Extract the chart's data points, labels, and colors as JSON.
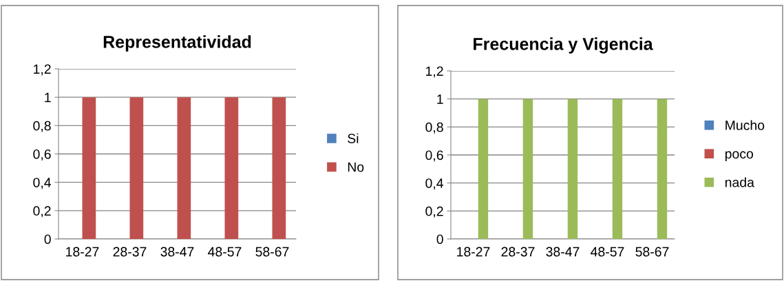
{
  "chart_data": [
    {
      "type": "bar",
      "title": "Representatividad",
      "categories": [
        "18-27",
        "28-37",
        "38-47",
        "48-57",
        "58-67"
      ],
      "series": [
        {
          "name": "Si",
          "color": "#4f81bd",
          "values": [
            0,
            0,
            0,
            0,
            0
          ]
        },
        {
          "name": "No",
          "color": "#c0504d",
          "values": [
            1,
            1,
            1,
            1,
            1
          ]
        }
      ],
      "ylim": [
        0,
        1.2
      ],
      "yticks": [
        0,
        {
          "value": 0.2,
          "label": "0,2"
        },
        {
          "value": 0.4,
          "label": "0,4"
        },
        {
          "value": 0.6,
          "label": "0,6"
        },
        {
          "value": 0.8,
          "label": "0,8"
        },
        1,
        {
          "value": 1.2,
          "label": "1,2"
        }
      ],
      "grid": "y",
      "legend": "right"
    },
    {
      "type": "bar",
      "title": "Frecuencia y Vigencia",
      "categories": [
        "18-27",
        "28-37",
        "38-47",
        "48-57",
        "58-67"
      ],
      "series": [
        {
          "name": "Mucho",
          "color": "#4f81bd",
          "values": [
            0,
            0,
            0,
            0,
            0
          ]
        },
        {
          "name": "poco",
          "color": "#c0504d",
          "values": [
            0,
            0,
            0,
            0,
            0
          ]
        },
        {
          "name": "nada",
          "color": "#9bbb59",
          "values": [
            1,
            1,
            1,
            1,
            1
          ]
        }
      ],
      "ylim": [
        0,
        1.2
      ],
      "yticks": [
        0,
        {
          "value": 0.2,
          "label": "0,2"
        },
        {
          "value": 0.4,
          "label": "0,4"
        },
        {
          "value": 0.6,
          "label": "0,6"
        },
        {
          "value": 0.8,
          "label": "0,8"
        },
        1,
        {
          "value": 1.2,
          "label": "1,2"
        }
      ],
      "grid": "y",
      "legend": "right"
    }
  ]
}
